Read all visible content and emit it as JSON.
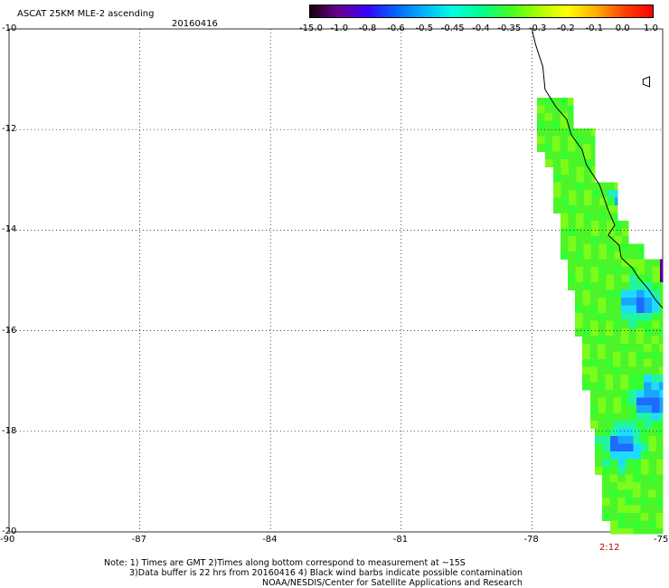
{
  "header": {
    "title": "ASCAT 25KM MLE-2 ascending",
    "date": "20160416"
  },
  "colorbar": {
    "labels": [
      "-15.0",
      "-1.0",
      "-0.8",
      "-0.6",
      "-0.5",
      "-0.45",
      "-0.4",
      "-0.35",
      "-0.3",
      "-0.2",
      "-0.1",
      "0.0",
      "1.0"
    ],
    "colors": [
      "#1a0010",
      "#6a0090",
      "#3a00ff",
      "#0066ff",
      "#00b4ff",
      "#00ffe0",
      "#00ff90",
      "#40ff20",
      "#aaff00",
      "#ffff00",
      "#ffb000",
      "#ff4000",
      "#ff0000"
    ]
  },
  "map": {
    "lat_labels": [
      "-10",
      "-12",
      "-14",
      "-16",
      "-18",
      "-20"
    ],
    "lon_labels": [
      "-90",
      "-87",
      "-84",
      "-81",
      "-78",
      "-75"
    ],
    "lat_range": [
      -20,
      -10
    ],
    "lon_range": [
      -90,
      -75
    ],
    "grid": "dotted",
    "coastline": [
      [
        -78.0,
        -10.0
      ],
      [
        -77.92,
        -10.3
      ],
      [
        -77.75,
        -10.75
      ],
      [
        -77.7,
        -11.2
      ],
      [
        -77.45,
        -11.55
      ],
      [
        -77.2,
        -11.8
      ],
      [
        -77.1,
        -12.1
      ],
      [
        -76.85,
        -12.4
      ],
      [
        -76.75,
        -12.7
      ],
      [
        -76.45,
        -13.1
      ],
      [
        -76.25,
        -13.6
      ],
      [
        -76.1,
        -13.9
      ],
      [
        -76.25,
        -14.1
      ],
      [
        -76.0,
        -14.3
      ],
      [
        -75.95,
        -14.55
      ],
      [
        -75.7,
        -14.75
      ],
      [
        -75.55,
        -14.95
      ],
      [
        -75.35,
        -15.15
      ],
      [
        -75.15,
        -15.4
      ],
      [
        -75.0,
        -15.55
      ]
    ],
    "island": [
      [
        -75.45,
        -11.0
      ],
      [
        -75.3,
        -10.95
      ],
      [
        -75.3,
        -11.15
      ],
      [
        -75.45,
        -11.1
      ]
    ]
  },
  "time_label": "2:12",
  "notes": [
    "Note: 1) Times are GMT 2)Times along bottom correspond to measurement at ~15S",
    "3)Data buffer is 22 hrs from 20160416 4) Black wind barbs indicate possible contamination",
    "NOAA/NESDIS/Center for Satellite Applications and Research"
  ]
}
